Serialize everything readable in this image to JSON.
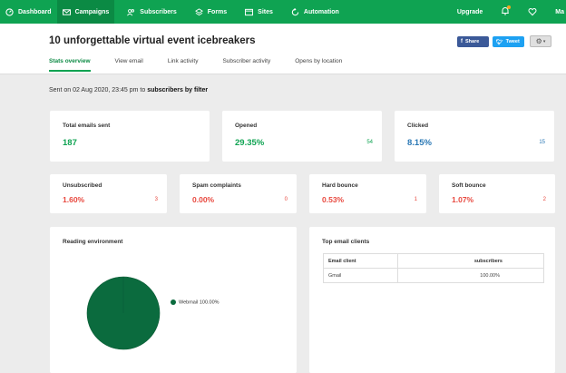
{
  "nav": {
    "items": [
      {
        "label": "Dashboard",
        "icon": "dashboard-icon"
      },
      {
        "label": "Campaigns",
        "icon": "envelope-icon",
        "active": true
      },
      {
        "label": "Subscribers",
        "icon": "users-icon"
      },
      {
        "label": "Forms",
        "icon": "forms-icon"
      },
      {
        "label": "Sites",
        "icon": "sites-icon"
      },
      {
        "label": "Automation",
        "icon": "automation-icon"
      }
    ],
    "upgrade": "Upgrade",
    "account": "Ma"
  },
  "header": {
    "title": "10 unforgettable virtual event icebreakers",
    "share_facebook": "Share",
    "share_twitter": "Tweet",
    "tabs": [
      "Stats overview",
      "View email",
      "Link activity",
      "Subscriber activity",
      "Opens by location"
    ]
  },
  "sent": {
    "prefix": "Sent on 02 Aug 2020, 23:45 pm to ",
    "target": "subscribers by filter"
  },
  "stats": {
    "total": {
      "label": "Total emails sent",
      "value": "187"
    },
    "opened": {
      "label": "Opened",
      "value": "29.35%",
      "count": "54"
    },
    "clicked": {
      "label": "Clicked",
      "value": "8.15%",
      "count": "15"
    },
    "unsubscribed": {
      "label": "Unsubscribed",
      "value": "1.60%",
      "count": "3"
    },
    "spam": {
      "label": "Spam complaints",
      "value": "0.00%",
      "count": "0"
    },
    "hard": {
      "label": "Hard bounce",
      "value": "0.53%",
      "count": "1"
    },
    "soft": {
      "label": "Soft bounce",
      "value": "1.07%",
      "count": "2"
    }
  },
  "reading": {
    "title": "Reading environment",
    "legend": "Webmail 100.00%",
    "color": "#0b6b3e"
  },
  "chart_data": {
    "type": "pie",
    "categories": [
      "Webmail"
    ],
    "values": [
      100.0
    ],
    "title": "Reading environment",
    "legend_placement": "right"
  },
  "clients": {
    "title": "Top email clients",
    "headers": [
      "Email client",
      "subscribers"
    ],
    "rows": [
      [
        "Gmail",
        "100.00%"
      ]
    ]
  },
  "colors": {
    "brand": "#0fa352",
    "green": "#0fa352",
    "blue": "#2a78b5",
    "red": "#e8483e"
  }
}
